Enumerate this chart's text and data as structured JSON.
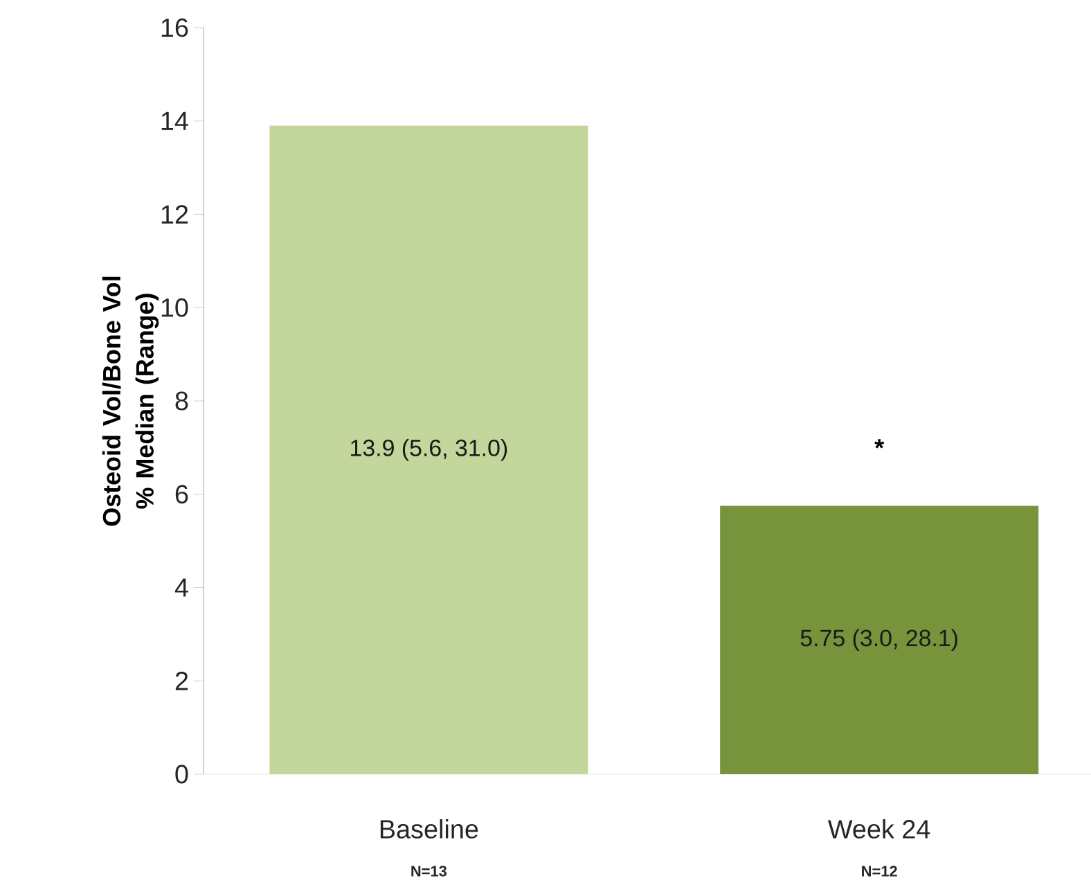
{
  "chart_data": {
    "type": "bar",
    "ylabel": "Osteoid Vol/Bone Vol % Median (Range)",
    "categories": [
      "Baseline",
      "Week 24"
    ],
    "values": [
      13.9,
      5.75
    ],
    "colors": [
      "#c3d69b",
      "#77933c"
    ],
    "value_labels": [
      "13.9 (5.6, 31.0)",
      "5.75 (3.0, 28.1)"
    ],
    "ylim": [
      0,
      16
    ],
    "yticks": [
      0,
      2,
      4,
      6,
      8,
      10,
      12,
      14,
      16
    ],
    "annotations": [
      "N=13",
      "N=12",
      "*"
    ]
  }
}
